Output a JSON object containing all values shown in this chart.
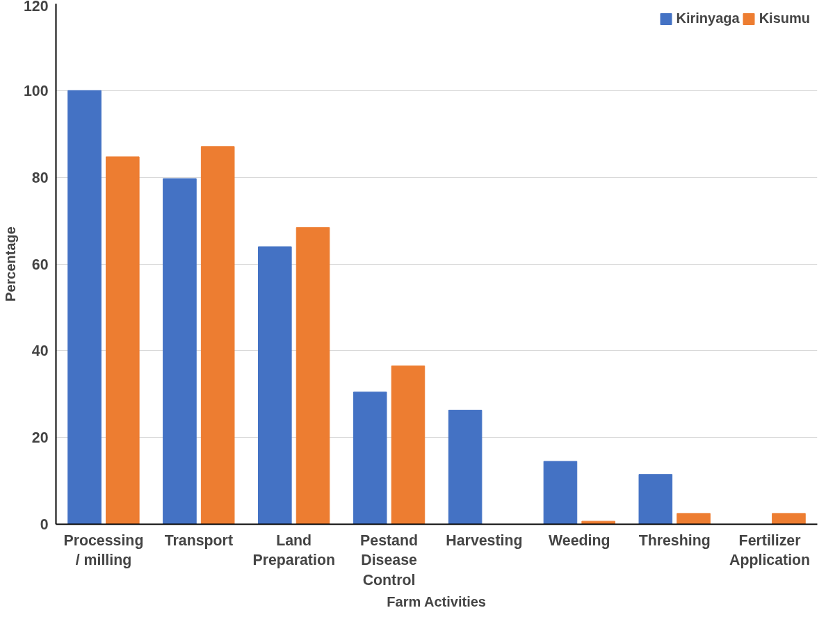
{
  "chart_data": {
    "type": "bar",
    "xlabel": "Farm Activities",
    "ylabel": "Percentage",
    "categories": [
      "Processing / milling",
      "Transport",
      "Land Preparation",
      "Pestand Disease Control",
      "Harvesting",
      "Weeding",
      "Threshing",
      "Fertilizer Application"
    ],
    "series": [
      {
        "name": "Kirinyaga",
        "color": "#4472c4",
        "values": [
          100,
          79.7,
          64,
          30.5,
          26.3,
          14.5,
          11.5,
          0
        ]
      },
      {
        "name": "Kisumu",
        "color": "#ed7d31",
        "values": [
          84.7,
          87.1,
          68.4,
          36.5,
          0,
          0.7,
          2.5,
          2.5
        ]
      }
    ],
    "ylim": [
      0,
      120
    ],
    "yticks": [
      0,
      20,
      40,
      60,
      80,
      100,
      120
    ],
    "grid": "y",
    "legend": "top right"
  }
}
